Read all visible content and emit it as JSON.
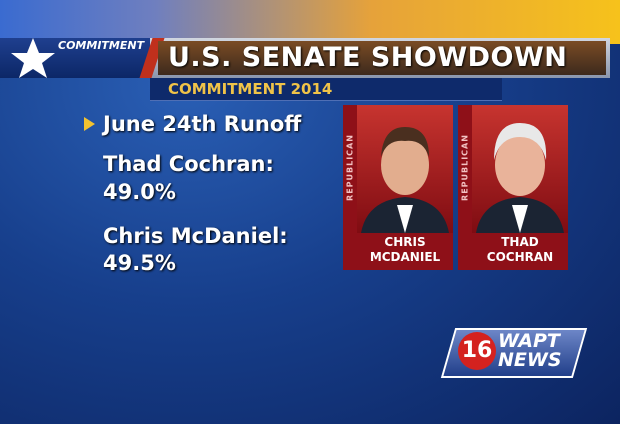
{
  "banner": {
    "tag": "COMMITMENT",
    "title": "U.S. SENATE SHOWDOWN",
    "subtitle": "COMMITMENT 2014"
  },
  "info": {
    "headline": "June 24th Runoff",
    "results": [
      {
        "name": "Thad Cochran:",
        "value": "49.0%"
      },
      {
        "name": "Chris McDaniel:",
        "value": "49.5%"
      }
    ]
  },
  "candidates": [
    {
      "party": "REPUBLICAN",
      "lines": [
        "CHRIS",
        "MCDANIEL"
      ]
    },
    {
      "party": "REPUBLICAN",
      "lines": [
        "THAD",
        "COCHRAN"
      ]
    }
  ],
  "logo": {
    "number": "16",
    "station": "WAPT",
    "word": "NEWS"
  }
}
